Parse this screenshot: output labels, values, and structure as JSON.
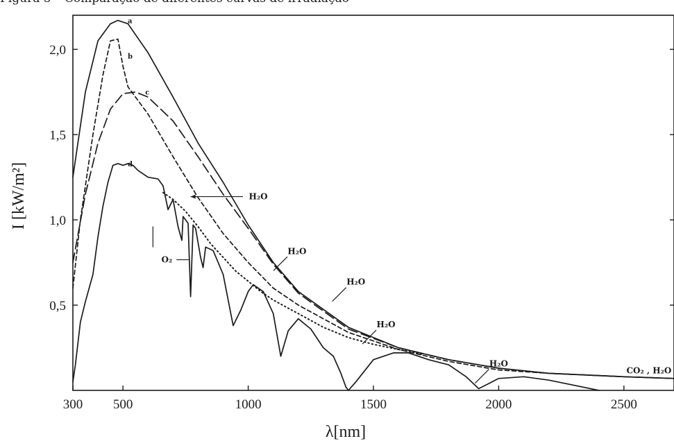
{
  "caption": "Figura 5 – Comparação de diferentes curvas de irradiação",
  "chart_data": {
    "type": "line",
    "xlabel": "λ[nm]",
    "ylabel": "I [kW/m²]",
    "xlim": [
      300,
      2700
    ],
    "ylim": [
      0,
      2.2
    ],
    "xticks": [
      300,
      500,
      1000,
      1500,
      2000,
      2500
    ],
    "xtick_labels": [
      "300",
      "500",
      "1000",
      "1500",
      "2000",
      "2500"
    ],
    "yticks": [
      0.5,
      1.0,
      1.5,
      2.0
    ],
    "ytick_labels": [
      "0,5",
      "1,0",
      "1,5",
      "2,0"
    ],
    "grid": false,
    "series": [
      {
        "name": "a",
        "style": "solid",
        "x": [
          300,
          350,
          400,
          450,
          480,
          520,
          600,
          700,
          800,
          900,
          1000,
          1100,
          1200,
          1400,
          1600,
          1800,
          2000,
          2200,
          2500,
          2700
        ],
        "y": [
          1.25,
          1.75,
          2.05,
          2.15,
          2.17,
          2.15,
          1.98,
          1.72,
          1.45,
          1.22,
          0.97,
          0.75,
          0.58,
          0.37,
          0.25,
          0.18,
          0.13,
          0.1,
          0.08,
          0.07
        ]
      },
      {
        "name": "b",
        "style": "dashed",
        "x": [
          300,
          330,
          380,
          420,
          450,
          480,
          500,
          520,
          600,
          700,
          800,
          900,
          1000,
          1100,
          1200,
          1400,
          1600,
          1800,
          2000,
          2200,
          2500,
          2700
        ],
        "y": [
          0.6,
          1.0,
          1.5,
          1.85,
          2.05,
          2.06,
          1.9,
          1.78,
          1.62,
          1.37,
          1.13,
          0.92,
          0.75,
          0.6,
          0.5,
          0.34,
          0.24,
          0.17,
          0.12,
          0.1,
          0.08,
          0.07
        ]
      },
      {
        "name": "c",
        "style": "longdash",
        "x": [
          300,
          350,
          400,
          450,
          500,
          550,
          600,
          700,
          800,
          900,
          1000,
          1100,
          1200,
          1400,
          1600,
          1800,
          2000,
          2200,
          2500,
          2700
        ],
        "y": [
          0.75,
          1.15,
          1.45,
          1.65,
          1.74,
          1.75,
          1.72,
          1.58,
          1.37,
          1.15,
          0.95,
          0.74,
          0.57,
          0.36,
          0.25,
          0.18,
          0.13,
          0.1,
          0.08,
          0.07
        ]
      },
      {
        "name": "d",
        "style": "solid",
        "x": [
          300,
          310,
          330,
          350,
          380,
          400,
          420,
          440,
          460,
          480,
          500,
          520,
          540,
          560,
          600,
          640,
          660,
          680,
          700,
          720,
          735,
          740,
          760,
          770,
          780,
          790,
          810,
          820,
          830,
          860,
          880,
          900,
          940,
          970,
          1000,
          1020,
          1060,
          1100,
          1130,
          1160,
          1200,
          1250,
          1300,
          1340,
          1370,
          1390,
          1400,
          1430,
          1500,
          1580,
          1640,
          1720,
          1800,
          1870,
          1920,
          1960,
          2000,
          2100,
          2200,
          2300,
          2400
        ],
        "y": [
          0.05,
          0.15,
          0.4,
          0.52,
          0.68,
          0.9,
          1.08,
          1.22,
          1.32,
          1.33,
          1.32,
          1.33,
          1.32,
          1.29,
          1.25,
          1.24,
          1.2,
          1.06,
          1.12,
          0.96,
          0.88,
          1.02,
          0.98,
          0.55,
          0.97,
          0.95,
          0.78,
          0.72,
          0.84,
          0.82,
          0.75,
          0.68,
          0.38,
          0.47,
          0.58,
          0.62,
          0.58,
          0.45,
          0.2,
          0.35,
          0.42,
          0.36,
          0.25,
          0.2,
          0.1,
          0.02,
          0.0,
          0.05,
          0.18,
          0.22,
          0.22,
          0.18,
          0.15,
          0.08,
          0.01,
          0.04,
          0.07,
          0.08,
          0.06,
          0.03,
          0.0
        ]
      },
      {
        "name": "",
        "style": "dotted",
        "x": [
          660,
          700,
          750,
          800,
          850,
          900,
          950,
          1000,
          1050,
          1100,
          1150,
          1200,
          1300,
          1400,
          1500,
          1600,
          1700
        ],
        "y": [
          1.16,
          1.12,
          1.05,
          0.96,
          0.86,
          0.78,
          0.7,
          0.64,
          0.58,
          0.53,
          0.49,
          0.45,
          0.37,
          0.31,
          0.27,
          0.24,
          0.21
        ]
      }
    ],
    "annotations": [
      {
        "text": "H₂O",
        "at": [
          1040,
          1.12
        ],
        "pointer": [
          770,
          1.1
        ]
      },
      {
        "text": "O₂",
        "at": [
          675,
          0.75
        ]
      },
      {
        "text": "H₂O",
        "at": [
          1195,
          0.8
        ]
      },
      {
        "text": "H₂O",
        "at": [
          1430,
          0.62
        ]
      },
      {
        "text": "H₂O",
        "at": [
          1550,
          0.37
        ]
      },
      {
        "text": "H₂O",
        "at": [
          2000,
          0.14
        ]
      },
      {
        "text": "CO₂ , H₂O",
        "at": [
          2600,
          0.1
        ]
      }
    ]
  }
}
